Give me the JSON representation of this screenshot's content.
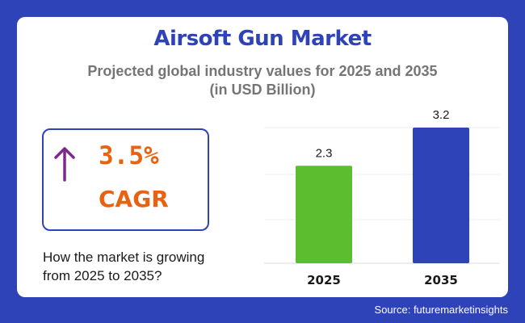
{
  "header": {
    "title": "Airsoft Gun Market",
    "subtitle_line1": "Projected global industry values for 2025 and 2035",
    "subtitle_line2": "(in USD Billion)"
  },
  "cagr": {
    "value": "3.5%",
    "label": "CAGR",
    "icon": "arrow-up-icon",
    "color": "#e8620f",
    "arrow_color": "#7b2a8c"
  },
  "question": {
    "line1": "How the market is growing",
    "line2": "from 2025 to 2035?"
  },
  "source": "Source: futuremarketinsights",
  "colors": {
    "background": "#2f43b8",
    "title": "#2f43b8",
    "bar_2025": "#5cbd2e",
    "bar_2035": "#2f43b8"
  },
  "chart_data": {
    "type": "bar",
    "categories": [
      "2025",
      "2035"
    ],
    "values": [
      2.3,
      3.2
    ],
    "data_labels": [
      "2.3",
      "3.2"
    ],
    "colors": [
      "#5cbd2e",
      "#2f43b8"
    ],
    "title": "",
    "xlabel": "",
    "ylabel": "",
    "ylim": [
      0,
      3.2
    ],
    "grid": true
  }
}
